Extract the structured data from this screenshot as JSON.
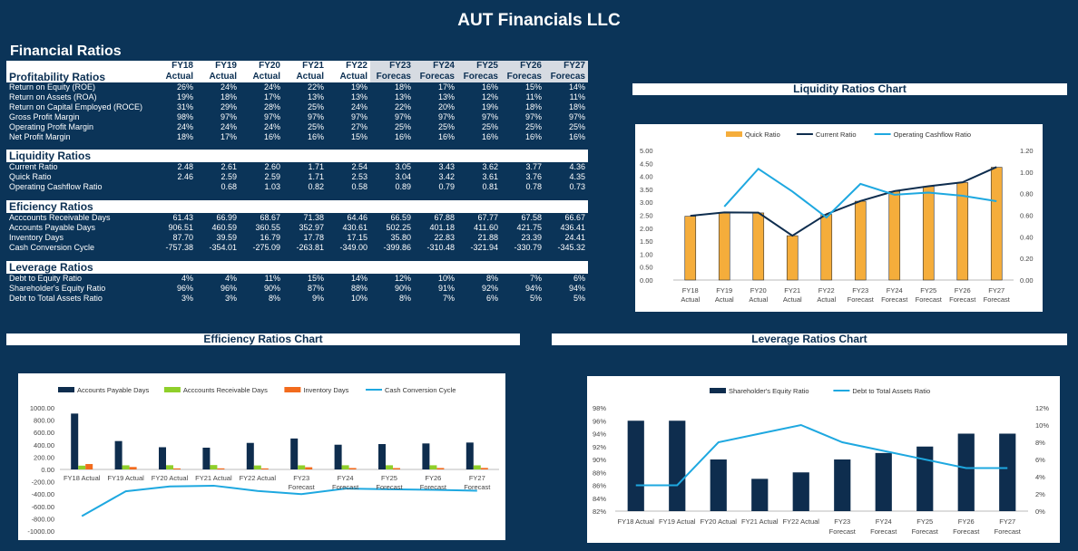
{
  "company": "AUT Financials LLC",
  "section_title": "Financial Ratios",
  "table": {
    "years_top": [
      "FY18",
      "FY19",
      "FY20",
      "FY21",
      "FY22",
      "FY23",
      "FY24",
      "FY25",
      "FY26",
      "FY27"
    ],
    "years_bottom": [
      "Actual",
      "Actual",
      "Actual",
      "Actual",
      "Actual",
      "Forecas",
      "Forecas",
      "Forecas",
      "Forecas",
      "Forecas"
    ],
    "sections": [
      {
        "title": "Profitability Ratios",
        "rows": [
          {
            "label": "Return on Equity (ROE)",
            "values": [
              "26%",
              "24%",
              "24%",
              "22%",
              "19%",
              "18%",
              "17%",
              "16%",
              "15%",
              "14%"
            ]
          },
          {
            "label": "Return on Assets (ROA)",
            "values": [
              "19%",
              "18%",
              "17%",
              "13%",
              "13%",
              "13%",
              "13%",
              "12%",
              "11%",
              "11%"
            ]
          },
          {
            "label": "Return on Capital Employed (ROCE)",
            "values": [
              "31%",
              "29%",
              "28%",
              "25%",
              "24%",
              "22%",
              "20%",
              "19%",
              "18%",
              "18%"
            ]
          },
          {
            "label": "Gross Profit Margin",
            "values": [
              "98%",
              "97%",
              "97%",
              "97%",
              "97%",
              "97%",
              "97%",
              "97%",
              "97%",
              "97%"
            ]
          },
          {
            "label": "Operating Profit Margin",
            "values": [
              "24%",
              "24%",
              "24%",
              "25%",
              "27%",
              "25%",
              "25%",
              "25%",
              "25%",
              "25%"
            ]
          },
          {
            "label": "Net Profit Margin",
            "values": [
              "18%",
              "17%",
              "16%",
              "16%",
              "15%",
              "16%",
              "16%",
              "16%",
              "16%",
              "16%"
            ]
          }
        ]
      },
      {
        "title": "Liquidity Ratios",
        "rows": [
          {
            "label": "Current Ratio",
            "values": [
              "2.48",
              "2.61",
              "2.60",
              "1.71",
              "2.54",
              "3.05",
              "3.43",
              "3.62",
              "3.77",
              "4.36"
            ]
          },
          {
            "label": "Quick Ratio",
            "values": [
              "2.46",
              "2.59",
              "2.59",
              "1.71",
              "2.53",
              "3.04",
              "3.42",
              "3.61",
              "3.76",
              "4.35"
            ]
          },
          {
            "label": "Operating Cashflow Ratio",
            "values": [
              "",
              "0.68",
              "1.03",
              "0.82",
              "0.58",
              "0.89",
              "0.79",
              "0.81",
              "0.78",
              "0.73"
            ]
          }
        ]
      },
      {
        "title": "Eficiency Ratios",
        "rows": [
          {
            "label": "Acccounts Receivable Days",
            "values": [
              "61.43",
              "66.99",
              "68.67",
              "71.38",
              "64.46",
              "66.59",
              "67.88",
              "67.77",
              "67.58",
              "66.67"
            ]
          },
          {
            "label": "Accounts Payable Days",
            "values": [
              "906.51",
              "460.59",
              "360.55",
              "352.97",
              "430.61",
              "502.25",
              "401.18",
              "411.60",
              "421.75",
              "436.41"
            ]
          },
          {
            "label": "Inventory Days",
            "values": [
              "87.70",
              "39.59",
              "16.79",
              "17.78",
              "17.15",
              "35.80",
              "22.83",
              "21.88",
              "23.39",
              "24.41"
            ]
          },
          {
            "label": "Cash Conversion Cycle",
            "values": [
              "-757.38",
              "-354.01",
              "-275.09",
              "-263.81",
              "-349.00",
              "-399.86",
              "-310.48",
              "-321.94",
              "-330.79",
              "-345.32"
            ]
          }
        ]
      },
      {
        "title": "Leverage Ratios",
        "rows": [
          {
            "label": "Debt to Equity Ratio",
            "values": [
              "4%",
              "4%",
              "11%",
              "15%",
              "14%",
              "12%",
              "10%",
              "8%",
              "7%",
              "6%"
            ]
          },
          {
            "label": "Shareholder's Equity Ratio",
            "values": [
              "96%",
              "96%",
              "90%",
              "87%",
              "88%",
              "90%",
              "91%",
              "92%",
              "94%",
              "94%"
            ]
          },
          {
            "label": "Debt to Total Assets Ratio",
            "values": [
              "3%",
              "3%",
              "8%",
              "9%",
              "10%",
              "8%",
              "7%",
              "6%",
              "5%",
              "5%"
            ]
          }
        ]
      }
    ]
  },
  "chart_data": [
    {
      "type": "bar",
      "title": "Liquidity Ratios Chart",
      "categories": [
        "FY18 Actual",
        "FY19 Actual",
        "FY20 Actual",
        "FY21 Actual",
        "FY22 Actual",
        "FY23 Forecast",
        "FY24 Forecast",
        "FY25 Forecast",
        "FY26 Forecast",
        "FY27 Forecast"
      ],
      "series": [
        {
          "name": "Quick Ratio",
          "kind": "bar",
          "axis": "left",
          "color": "#f5ad3b",
          "values": [
            2.46,
            2.59,
            2.59,
            1.71,
            2.53,
            3.04,
            3.42,
            3.61,
            3.76,
            4.35
          ]
        },
        {
          "name": "Current Ratio",
          "kind": "line",
          "axis": "left",
          "color": "#0e2d4e",
          "values": [
            2.48,
            2.61,
            2.6,
            1.71,
            2.54,
            3.05,
            3.43,
            3.62,
            3.77,
            4.36
          ]
        },
        {
          "name": "Operating Cashflow Ratio",
          "kind": "line",
          "axis": "right",
          "color": "#1ea8e0",
          "values": [
            null,
            0.68,
            1.03,
            0.82,
            0.58,
            0.89,
            0.79,
            0.81,
            0.78,
            0.73
          ]
        }
      ],
      "left_ticks": [
        "5.00",
        "4.50",
        "4.00",
        "3.50",
        "3.00",
        "2.50",
        "2.00",
        "1.50",
        "1.00",
        "0.50",
        "0.00"
      ],
      "right_ticks": [
        "1.20",
        "1.00",
        "0.80",
        "0.60",
        "0.40",
        "0.20",
        "0.00"
      ],
      "ylim": [
        0,
        5
      ],
      "y2lim": [
        0,
        1.2
      ],
      "legend": "top"
    },
    {
      "type": "bar",
      "title": "Efficiency Ratios Chart",
      "categories": [
        "FY18 Actual",
        "FY19 Actual",
        "FY20 Actual",
        "FY21 Actual",
        "FY22 Actual",
        "FY23 Forecast",
        "FY24 Forecast",
        "FY25 Forecast",
        "FY26 Forecast",
        "FY27 Forecast"
      ],
      "series": [
        {
          "name": "Accounts Payable Days",
          "kind": "bar",
          "color": "#0e2d4e",
          "values": [
            906.51,
            460.59,
            360.55,
            352.97,
            430.61,
            502.25,
            401.18,
            411.6,
            421.75,
            436.41
          ]
        },
        {
          "name": "Acccounts Receivable Days",
          "kind": "bar",
          "color": "#8fcf2a",
          "values": [
            61.43,
            66.99,
            68.67,
            71.38,
            64.46,
            66.59,
            67.88,
            67.77,
            67.58,
            66.67
          ]
        },
        {
          "name": "Inventory Days",
          "kind": "bar",
          "color": "#f26b1d",
          "values": [
            87.7,
            39.59,
            16.79,
            17.78,
            17.15,
            35.8,
            22.83,
            21.88,
            23.39,
            24.41
          ]
        },
        {
          "name": "Cash Conversion Cycle",
          "kind": "line",
          "color": "#1ea8e0",
          "values": [
            -757.38,
            -354.01,
            -275.09,
            -263.81,
            -349.0,
            -399.86,
            -310.48,
            -321.94,
            -330.79,
            -345.32
          ]
        }
      ],
      "left_ticks": [
        "1000.00",
        "800.00",
        "600.00",
        "400.00",
        "200.00",
        "0.00",
        "-200.00",
        "-400.00",
        "-600.00",
        "-800.00",
        "-1000.00"
      ],
      "ylim": [
        -1000,
        1000
      ],
      "legend": "top"
    },
    {
      "type": "bar",
      "title": "Leverage Ratios Chart",
      "categories": [
        "FY18 Actual",
        "FY19 Actual",
        "FY20 Actual",
        "FY21 Actual",
        "FY22 Actual",
        "FY23 Forecast",
        "FY24 Forecast",
        "FY25 Forecast",
        "FY26 Forecast",
        "FY27 Forecast"
      ],
      "series": [
        {
          "name": "Shareholder's Equity Ratio",
          "kind": "bar",
          "axis": "left",
          "color": "#0e2d4e",
          "values": [
            96,
            96,
            90,
            87,
            88,
            90,
            91,
            92,
            94,
            94
          ]
        },
        {
          "name": "Debt to Total Assets Ratio",
          "kind": "line",
          "axis": "right",
          "color": "#1ea8e0",
          "values": [
            3,
            3,
            8,
            9,
            10,
            8,
            7,
            6,
            5,
            5
          ]
        }
      ],
      "left_ticks": [
        "98%",
        "96%",
        "94%",
        "92%",
        "90%",
        "88%",
        "86%",
        "84%",
        "82%"
      ],
      "right_ticks": [
        "12%",
        "10%",
        "8%",
        "6%",
        "4%",
        "2%",
        "0%"
      ],
      "ylim": [
        82,
        98
      ],
      "y2lim": [
        0,
        12
      ],
      "legend": "top"
    }
  ]
}
